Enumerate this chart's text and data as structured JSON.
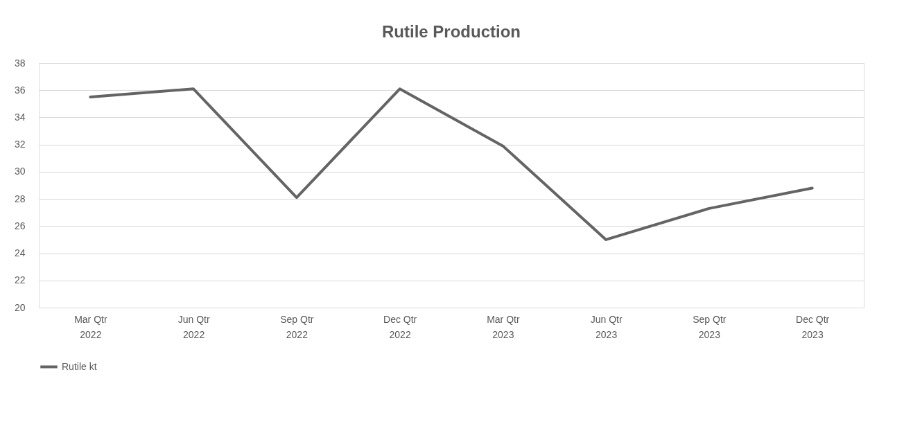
{
  "chart_data": {
    "type": "line",
    "title": "Rutile Production",
    "categories": [
      "Mar Qtr 2022",
      "Jun Qtr 2022",
      "Sep Qtr 2022",
      "Dec Qtr 2022",
      "Mar Qtr 2023",
      "Jun Qtr 2023",
      "Sep Qtr 2023",
      "Dec Qtr 2023"
    ],
    "series": [
      {
        "name": "Rutile kt",
        "color": "#646464",
        "values": [
          35.5,
          36.1,
          28.1,
          36.1,
          31.9,
          25.0,
          27.3,
          28.8
        ]
      }
    ],
    "ylim": [
      20,
      38
    ],
    "yticks": [
      20,
      22,
      24,
      26,
      28,
      30,
      32,
      34,
      36,
      38
    ],
    "grid": "y",
    "legend": "bottom",
    "marker": "none",
    "line_style": "solid"
  }
}
